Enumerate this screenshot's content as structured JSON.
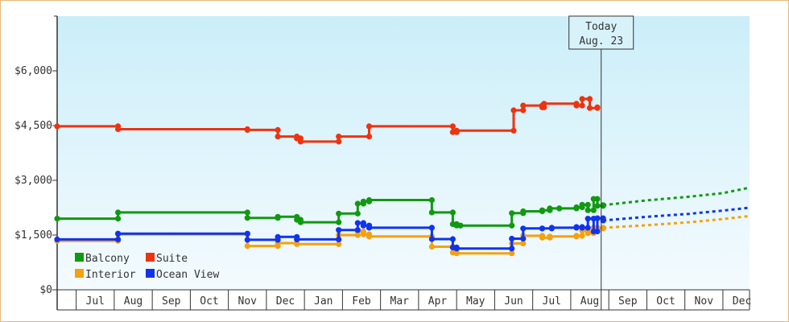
{
  "chart_data": {
    "type": "line",
    "title": "",
    "xlabel": "",
    "ylabel": "",
    "ylim": [
      0,
      7500
    ],
    "y_ticks": [
      {
        "value": 0,
        "label": "$0"
      },
      {
        "value": 1500,
        "label": "$1,500"
      },
      {
        "value": 3000,
        "label": "$3,000"
      },
      {
        "value": 4500,
        "label": "$4,500"
      },
      {
        "value": 6000,
        "label": "$6,000"
      }
    ],
    "x_domain": [
      0,
      18.2
    ],
    "months": [
      {
        "label": "Jul",
        "index": 1
      },
      {
        "label": "Aug",
        "index": 2
      },
      {
        "label": "Sep",
        "index": 3
      },
      {
        "label": "Oct",
        "index": 4
      },
      {
        "label": "Nov",
        "index": 5
      },
      {
        "label": "Dec",
        "index": 6
      },
      {
        "label": "Jan",
        "index": 7
      },
      {
        "label": "Feb",
        "index": 8
      },
      {
        "label": "Mar",
        "index": 9
      },
      {
        "label": "Apr",
        "index": 10
      },
      {
        "label": "May",
        "index": 11
      },
      {
        "label": "Jun",
        "index": 12
      },
      {
        "label": "Jul",
        "index": 13
      },
      {
        "label": "Aug",
        "index": 14
      },
      {
        "label": "Sep",
        "index": 15
      },
      {
        "label": "Oct",
        "index": 16
      },
      {
        "label": "Nov",
        "index": 17
      },
      {
        "label": "Dec",
        "index": 18
      }
    ],
    "today": {
      "line1": "Today",
      "line2": "Aug. 23",
      "x": 14.3
    },
    "grid": false,
    "legend_position": "bottom-left",
    "series": [
      {
        "name": "Balcony",
        "color": "#119911",
        "points": [
          [
            0,
            1950
          ],
          [
            1.6,
            1950
          ],
          [
            1.6,
            2120
          ],
          [
            5.0,
            2120
          ],
          [
            5.0,
            1970
          ],
          [
            5.8,
            1970
          ],
          [
            5.8,
            2000
          ],
          [
            6.3,
            2000
          ],
          [
            6.3,
            1920
          ],
          [
            6.4,
            1920
          ],
          [
            6.4,
            1850
          ],
          [
            7.4,
            1850
          ],
          [
            7.4,
            2090
          ],
          [
            7.9,
            2090
          ],
          [
            7.9,
            2360
          ],
          [
            8.05,
            2360
          ],
          [
            8.05,
            2420
          ],
          [
            8.2,
            2420
          ],
          [
            8.2,
            2460
          ],
          [
            9.85,
            2460
          ],
          [
            9.85,
            2120
          ],
          [
            10.4,
            2120
          ],
          [
            10.4,
            1800
          ],
          [
            10.5,
            1800
          ],
          [
            10.5,
            1760
          ],
          [
            10.6,
            1760
          ],
          [
            10.6,
            1760
          ],
          [
            11.95,
            1760
          ],
          [
            11.95,
            2100
          ],
          [
            12.25,
            2100
          ],
          [
            12.25,
            2150
          ],
          [
            12.75,
            2150
          ],
          [
            12.75,
            2180
          ],
          [
            12.95,
            2180
          ],
          [
            12.95,
            2230
          ],
          [
            13.2,
            2230
          ],
          [
            13.2,
            2230
          ],
          [
            13.65,
            2230
          ],
          [
            13.65,
            2260
          ],
          [
            13.8,
            2260
          ],
          [
            13.8,
            2330
          ],
          [
            13.95,
            2330
          ],
          [
            13.95,
            2180
          ],
          [
            14.1,
            2180
          ],
          [
            14.1,
            2490
          ],
          [
            14.2,
            2490
          ],
          [
            14.2,
            2300
          ],
          [
            14.35,
            2300
          ],
          [
            14.35,
            2320
          ]
        ],
        "forecast": [
          [
            14.35,
            2320
          ],
          [
            15.5,
            2450
          ],
          [
            16.6,
            2550
          ],
          [
            17.5,
            2650
          ],
          [
            18.2,
            2800
          ]
        ]
      },
      {
        "name": "Suite",
        "color": "#ee3311",
        "points": [
          [
            0,
            4480
          ],
          [
            1.6,
            4480
          ],
          [
            1.6,
            4400
          ],
          [
            5.0,
            4400
          ],
          [
            5.0,
            4380
          ],
          [
            5.8,
            4380
          ],
          [
            5.8,
            4200
          ],
          [
            6.3,
            4200
          ],
          [
            6.3,
            4150
          ],
          [
            6.4,
            4150
          ],
          [
            6.4,
            4060
          ],
          [
            7.4,
            4060
          ],
          [
            7.4,
            4200
          ],
          [
            8.2,
            4200
          ],
          [
            8.2,
            4480
          ],
          [
            10.4,
            4480
          ],
          [
            10.4,
            4320
          ],
          [
            10.5,
            4320
          ],
          [
            10.5,
            4360
          ],
          [
            12.0,
            4360
          ],
          [
            12.0,
            4920
          ],
          [
            12.25,
            4920
          ],
          [
            12.25,
            5050
          ],
          [
            12.75,
            5050
          ],
          [
            12.75,
            5000
          ],
          [
            12.8,
            5000
          ],
          [
            12.8,
            5100
          ],
          [
            13.65,
            5100
          ],
          [
            13.65,
            5050
          ],
          [
            13.8,
            5050
          ],
          [
            13.8,
            5230
          ],
          [
            14.0,
            5230
          ],
          [
            14.0,
            4980
          ],
          [
            14.2,
            4980
          ],
          [
            14.2,
            5000
          ]
        ],
        "forecast": []
      },
      {
        "name": "Interior",
        "color": "#f4a10f",
        "points": [
          [
            0,
            1340
          ],
          [
            1.6,
            1340
          ],
          [
            1.6,
            1520
          ],
          [
            5.0,
            1520
          ],
          [
            5.0,
            1200
          ],
          [
            5.8,
            1200
          ],
          [
            5.8,
            1280
          ],
          [
            6.3,
            1280
          ],
          [
            6.3,
            1250
          ],
          [
            7.4,
            1250
          ],
          [
            7.4,
            1500
          ],
          [
            7.9,
            1500
          ],
          [
            7.9,
            1600
          ],
          [
            8.05,
            1600
          ],
          [
            8.05,
            1520
          ],
          [
            8.2,
            1520
          ],
          [
            8.2,
            1460
          ],
          [
            9.85,
            1460
          ],
          [
            9.85,
            1180
          ],
          [
            10.4,
            1180
          ],
          [
            10.4,
            1020
          ],
          [
            10.5,
            1020
          ],
          [
            10.5,
            1000
          ],
          [
            11.95,
            1000
          ],
          [
            11.95,
            1270
          ],
          [
            12.25,
            1270
          ],
          [
            12.25,
            1480
          ],
          [
            12.75,
            1480
          ],
          [
            12.75,
            1430
          ],
          [
            12.95,
            1430
          ],
          [
            12.95,
            1460
          ],
          [
            13.65,
            1460
          ],
          [
            13.65,
            1480
          ],
          [
            13.8,
            1480
          ],
          [
            13.8,
            1620
          ],
          [
            13.95,
            1620
          ],
          [
            13.95,
            1550
          ],
          [
            14.1,
            1550
          ],
          [
            14.1,
            1700
          ],
          [
            14.2,
            1700
          ],
          [
            14.2,
            1680
          ],
          [
            14.35,
            1680
          ],
          [
            14.35,
            1700
          ]
        ],
        "forecast": [
          [
            14.35,
            1700
          ],
          [
            15.5,
            1770
          ],
          [
            16.6,
            1850
          ],
          [
            17.5,
            1940
          ],
          [
            18.2,
            2020
          ]
        ]
      },
      {
        "name": "Ocean View",
        "color": "#1133ee",
        "points": [
          [
            0,
            1380
          ],
          [
            1.6,
            1380
          ],
          [
            1.6,
            1540
          ],
          [
            5.0,
            1540
          ],
          [
            5.0,
            1370
          ],
          [
            5.8,
            1370
          ],
          [
            5.8,
            1450
          ],
          [
            6.3,
            1450
          ],
          [
            6.3,
            1380
          ],
          [
            7.4,
            1380
          ],
          [
            7.4,
            1640
          ],
          [
            7.9,
            1640
          ],
          [
            7.9,
            1830
          ],
          [
            8.05,
            1830
          ],
          [
            8.05,
            1760
          ],
          [
            8.2,
            1760
          ],
          [
            8.2,
            1700
          ],
          [
            9.85,
            1700
          ],
          [
            9.85,
            1390
          ],
          [
            10.4,
            1390
          ],
          [
            10.4,
            1160
          ],
          [
            10.5,
            1160
          ],
          [
            10.5,
            1130
          ],
          [
            11.95,
            1130
          ],
          [
            11.95,
            1400
          ],
          [
            12.25,
            1400
          ],
          [
            12.25,
            1680
          ],
          [
            12.75,
            1680
          ],
          [
            12.75,
            1680
          ],
          [
            13.0,
            1680
          ],
          [
            13.0,
            1700
          ],
          [
            13.65,
            1700
          ],
          [
            13.65,
            1720
          ],
          [
            13.8,
            1720
          ],
          [
            13.8,
            1700
          ],
          [
            13.95,
            1700
          ],
          [
            13.95,
            1950
          ],
          [
            14.1,
            1950
          ],
          [
            14.1,
            1600
          ],
          [
            14.2,
            1600
          ],
          [
            14.2,
            1960
          ],
          [
            14.35,
            1960
          ],
          [
            14.35,
            1900
          ]
        ],
        "forecast": [
          [
            14.35,
            1900
          ],
          [
            15.5,
            2000
          ],
          [
            16.6,
            2080
          ],
          [
            17.5,
            2170
          ],
          [
            18.2,
            2250
          ]
        ]
      }
    ]
  }
}
